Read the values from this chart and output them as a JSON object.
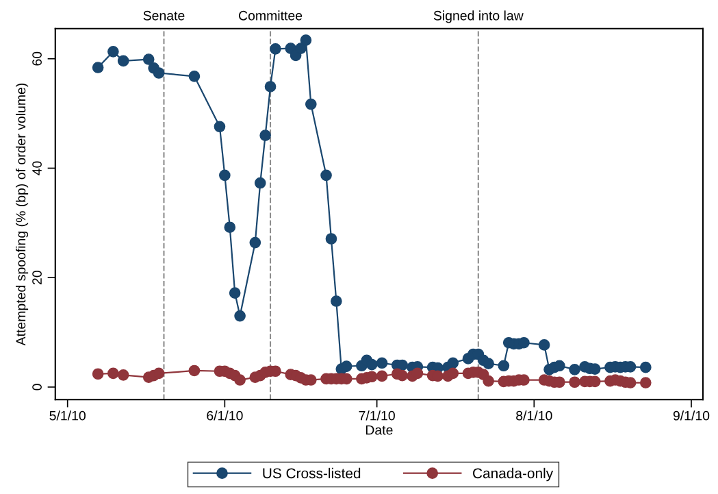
{
  "chart_data": {
    "type": "line",
    "xlabel": "Date",
    "ylabel": "Attempted spoofing (% (bp) of order volume)",
    "x": [
      "2010-05-07",
      "2010-05-10",
      "2010-05-12",
      "2010-05-17",
      "2010-05-18",
      "2010-05-19",
      "2010-05-26",
      "2010-05-31",
      "2010-06-01",
      "2010-06-02",
      "2010-06-03",
      "2010-06-04",
      "2010-06-07",
      "2010-06-08",
      "2010-06-09",
      "2010-06-10",
      "2010-06-11",
      "2010-06-14",
      "2010-06-15",
      "2010-06-16",
      "2010-06-17",
      "2010-06-18",
      "2010-06-21",
      "2010-06-22",
      "2010-06-23",
      "2010-06-24",
      "2010-06-25",
      "2010-06-28",
      "2010-06-29",
      "2010-06-30",
      "2010-07-02",
      "2010-07-05",
      "2010-07-06",
      "2010-07-08",
      "2010-07-09",
      "2010-07-12",
      "2010-07-13",
      "2010-07-15",
      "2010-07-16",
      "2010-07-19",
      "2010-07-20",
      "2010-07-21",
      "2010-07-22",
      "2010-07-23",
      "2010-07-26",
      "2010-07-27",
      "2010-07-28",
      "2010-07-29",
      "2010-07-30",
      "2010-08-03",
      "2010-08-04",
      "2010-08-05",
      "2010-08-06",
      "2010-08-09",
      "2010-08-11",
      "2010-08-12",
      "2010-08-13",
      "2010-08-16",
      "2010-08-17",
      "2010-08-18",
      "2010-08-19",
      "2010-08-20",
      "2010-08-23"
    ],
    "series": [
      {
        "name": "US Cross-listed",
        "color": "#1a476f",
        "values": [
          58.4,
          61.3,
          59.6,
          59.9,
          58.3,
          57.4,
          56.8,
          47.6,
          38.7,
          29.2,
          17.2,
          13.0,
          26.4,
          37.3,
          46.0,
          54.9,
          61.8,
          61.9,
          60.6,
          61.9,
          63.4,
          51.7,
          38.7,
          27.1,
          15.7,
          3.3,
          3.8,
          3.9,
          4.9,
          4.1,
          4.4,
          4.0,
          4.0,
          3.6,
          3.7,
          3.6,
          3.5,
          3.6,
          4.4,
          5.2,
          6.0,
          6.0,
          4.9,
          4.3,
          3.9,
          8.1,
          7.9,
          7.9,
          8.1,
          7.7,
          3.2,
          3.6,
          3.9,
          3.2,
          3.7,
          3.4,
          3.3,
          3.6,
          3.7,
          3.6,
          3.7,
          3.7,
          3.6
        ]
      },
      {
        "name": "Canada-only",
        "color": "#90353b",
        "values": [
          2.4,
          2.5,
          2.2,
          1.8,
          2.1,
          2.5,
          3.0,
          2.9,
          2.9,
          2.5,
          2.1,
          1.3,
          1.8,
          2.1,
          2.7,
          2.9,
          2.9,
          2.3,
          2.1,
          1.7,
          1.3,
          1.3,
          1.5,
          1.5,
          1.5,
          1.5,
          1.5,
          1.5,
          1.7,
          1.9,
          2.0,
          2.4,
          2.1,
          2.0,
          2.5,
          2.1,
          2.0,
          2.0,
          2.5,
          2.5,
          2.7,
          2.7,
          2.3,
          1.1,
          1.0,
          1.1,
          1.1,
          1.3,
          1.3,
          1.3,
          1.1,
          0.9,
          0.9,
          0.9,
          1.0,
          1.0,
          1.0,
          1.1,
          1.3,
          1.1,
          0.9,
          0.8,
          0.8
        ]
      }
    ],
    "xlim": [
      "2010-04-28T14:00",
      "2010-09-03T07:00"
    ],
    "xticks": [
      {
        "value": "2010-05-01",
        "label": "5/1/10"
      },
      {
        "value": "2010-06-01",
        "label": "6/1/10"
      },
      {
        "value": "2010-07-01",
        "label": "7/1/10"
      },
      {
        "value": "2010-08-01",
        "label": "8/1/10"
      },
      {
        "value": "2010-09-01",
        "label": "9/1/10"
      }
    ],
    "ylim": [
      -2.3,
      65.5
    ],
    "yticks": [
      0,
      20,
      40,
      60
    ],
    "ref_lines": [
      {
        "axis": "x",
        "value": "2010-05-20",
        "label": "Senate",
        "color": "#8c8c8c",
        "line_style": "dashed"
      },
      {
        "axis": "x",
        "value": "2010-06-10",
        "label": "Committee",
        "color": "#8c8c8c",
        "line_style": "dashed"
      },
      {
        "axis": "x",
        "value": "2010-07-21",
        "label": "Signed into law",
        "color": "#8c8c8c",
        "line_style": "dashed"
      }
    ],
    "grid": false,
    "legend": "bottom",
    "marker": "circle",
    "line_style": "solid"
  }
}
